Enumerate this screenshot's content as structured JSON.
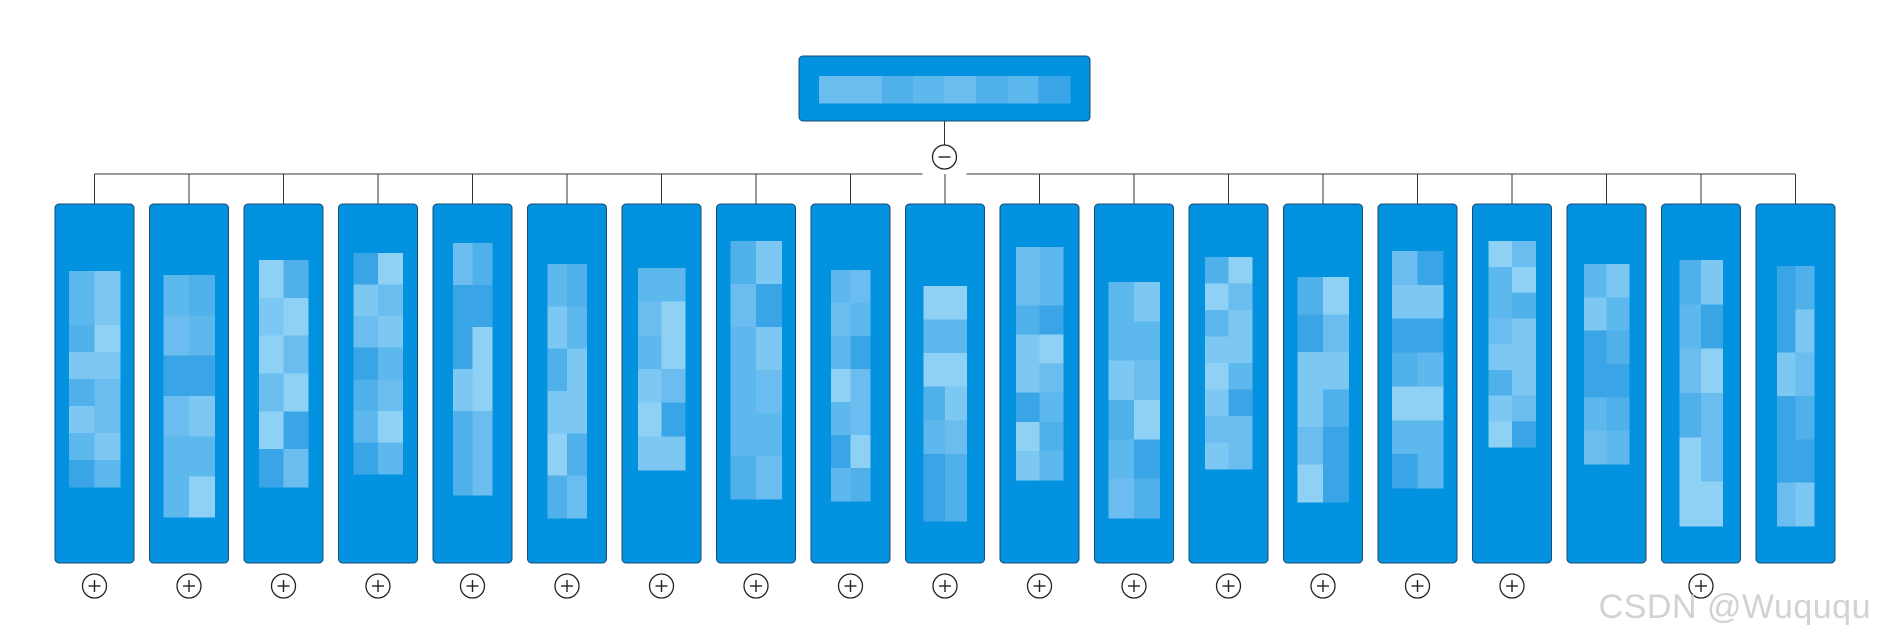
{
  "diagram": {
    "type": "org-chart",
    "colors": {
      "node_fill": "#0292e0",
      "node_border": "#1b4a73",
      "connector": "#333333",
      "toggle_stroke": "#222222",
      "redaction_tints": [
        "#4fb0ea",
        "#7cc8f2",
        "#5db8ee",
        "#3aa5e6",
        "#8fd0f5",
        "#6bbdef"
      ]
    },
    "root": {
      "label_redacted": true,
      "toggle_icon": "collapse-minus-icon",
      "expanded": true
    },
    "children": [
      {
        "index": 1,
        "label_redacted": true,
        "toggle_icon": "expand-plus-icon",
        "has_toggle": true
      },
      {
        "index": 2,
        "label_redacted": true,
        "toggle_icon": "expand-plus-icon",
        "has_toggle": true
      },
      {
        "index": 3,
        "label_redacted": true,
        "toggle_icon": "expand-plus-icon",
        "has_toggle": true
      },
      {
        "index": 4,
        "label_redacted": true,
        "toggle_icon": "expand-plus-icon",
        "has_toggle": true
      },
      {
        "index": 5,
        "label_redacted": true,
        "toggle_icon": "expand-plus-icon",
        "has_toggle": true
      },
      {
        "index": 6,
        "label_redacted": true,
        "toggle_icon": "expand-plus-icon",
        "has_toggle": true
      },
      {
        "index": 7,
        "label_redacted": true,
        "toggle_icon": "expand-plus-icon",
        "has_toggle": true
      },
      {
        "index": 8,
        "label_redacted": true,
        "toggle_icon": "expand-plus-icon",
        "has_toggle": true
      },
      {
        "index": 9,
        "label_redacted": true,
        "toggle_icon": "expand-plus-icon",
        "has_toggle": true
      },
      {
        "index": 10,
        "label_redacted": true,
        "toggle_icon": "expand-plus-icon",
        "has_toggle": true
      },
      {
        "index": 11,
        "label_redacted": true,
        "toggle_icon": "expand-plus-icon",
        "has_toggle": true
      },
      {
        "index": 12,
        "label_redacted": true,
        "toggle_icon": "expand-plus-icon",
        "has_toggle": true
      },
      {
        "index": 13,
        "label_redacted": true,
        "toggle_icon": "expand-plus-icon",
        "has_toggle": true
      },
      {
        "index": 14,
        "label_redacted": true,
        "toggle_icon": "expand-plus-icon",
        "has_toggle": true
      },
      {
        "index": 15,
        "label_redacted": true,
        "toggle_icon": "expand-plus-icon",
        "has_toggle": true
      },
      {
        "index": 16,
        "label_redacted": true,
        "toggle_icon": "expand-plus-icon",
        "has_toggle": true
      },
      {
        "index": 17,
        "label_redacted": true,
        "toggle_icon": "expand-plus-icon",
        "has_toggle": false
      },
      {
        "index": 18,
        "label_redacted": true,
        "toggle_icon": "expand-plus-icon",
        "has_toggle": true
      },
      {
        "index": 19,
        "label_redacted": true,
        "toggle_icon": "expand-plus-icon",
        "has_toggle": false
      }
    ]
  },
  "watermark": {
    "text": "CSDN @Wuququ"
  }
}
